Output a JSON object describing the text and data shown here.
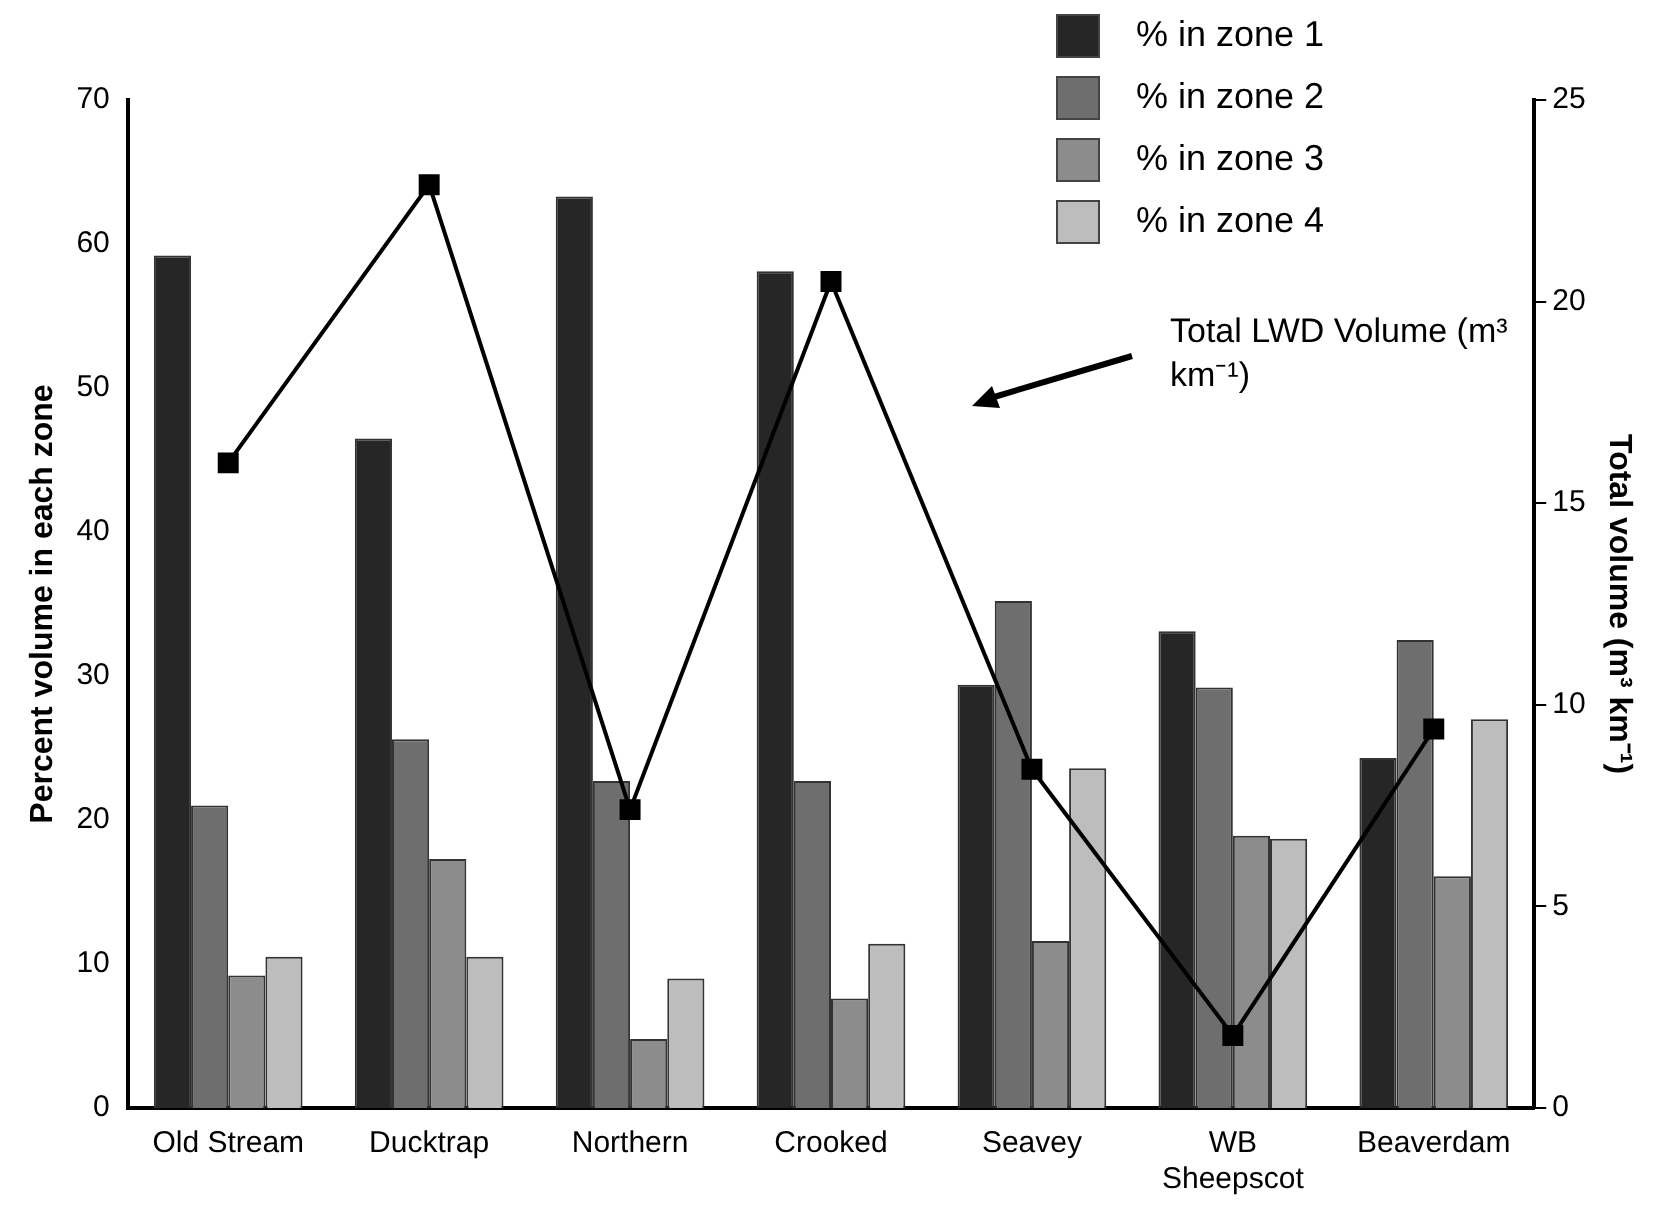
{
  "chart_data": {
    "type": "bar",
    "ylabel": "Percent volume in each zone",
    "y2label": "Total volume (m³ km⁻¹)",
    "categories": [
      "Old Stream",
      "Ducktrap",
      "Northern",
      "Crooked",
      "Seavey",
      "WB Sheepscot",
      "Beaverdam"
    ],
    "series": [
      {
        "name": "% in zone 1",
        "color": "#262626",
        "values": [
          59.2,
          46.5,
          63.3,
          58.1,
          29.4,
          33.1,
          24.3
        ]
      },
      {
        "name": "% in zone 2",
        "color": "#6e6e6e",
        "values": [
          21,
          25.6,
          22.7,
          22.7,
          35.2,
          29.2,
          32.5
        ]
      },
      {
        "name": "% in zone 3",
        "color": "#8c8c8c",
        "values": [
          9.2,
          17.3,
          4.8,
          7.6,
          11.6,
          18.9,
          16.1
        ]
      },
      {
        "name": "% in zone 4",
        "color": "#bdbdbd",
        "values": [
          10.5,
          10.5,
          9,
          11.4,
          23.6,
          18.7,
          27
        ]
      },
      {
        "type": "line",
        "axis": "y2",
        "color": "#000000",
        "marker": "square",
        "values": [
          16,
          22.9,
          7.4,
          20.5,
          8.4,
          1.8,
          9.4
        ]
      }
    ],
    "ylim": [
      0,
      70
    ],
    "yticks": [
      0,
      10,
      20,
      30,
      40,
      50,
      60,
      70
    ],
    "y2lim": [
      0,
      25
    ],
    "y2ticks": [
      0,
      5,
      10,
      15,
      20,
      25
    ],
    "legend": "top right",
    "grid": false,
    "annotations": [
      "Total LWD Volume (m³ km⁻¹)"
    ]
  }
}
